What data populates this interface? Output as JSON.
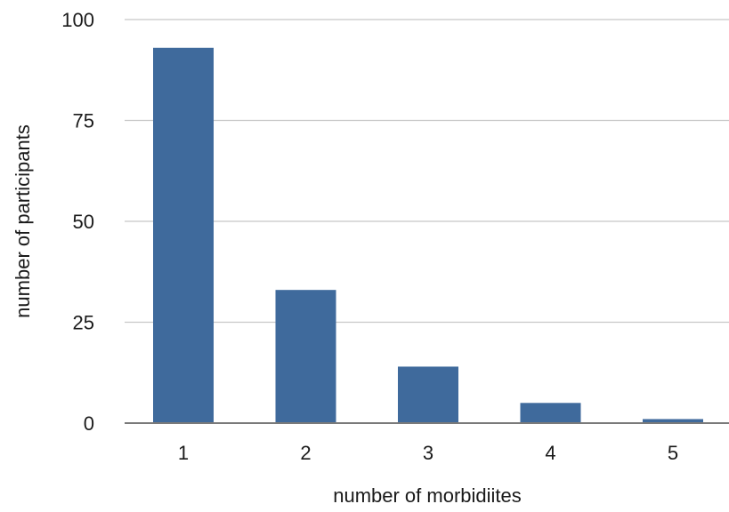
{
  "chart_data": {
    "type": "bar",
    "title": "",
    "xlabel": "number of morbidiites",
    "ylabel": "number of participants",
    "categories": [
      "1",
      "2",
      "3",
      "4",
      "5"
    ],
    "values": [
      93,
      33,
      14,
      5,
      1
    ],
    "ylim": [
      0,
      100
    ],
    "yticks": [
      "0",
      "25",
      "50",
      "75",
      "100"
    ],
    "grid": true,
    "legend": "none",
    "bar_color": "#3f6a9c"
  }
}
